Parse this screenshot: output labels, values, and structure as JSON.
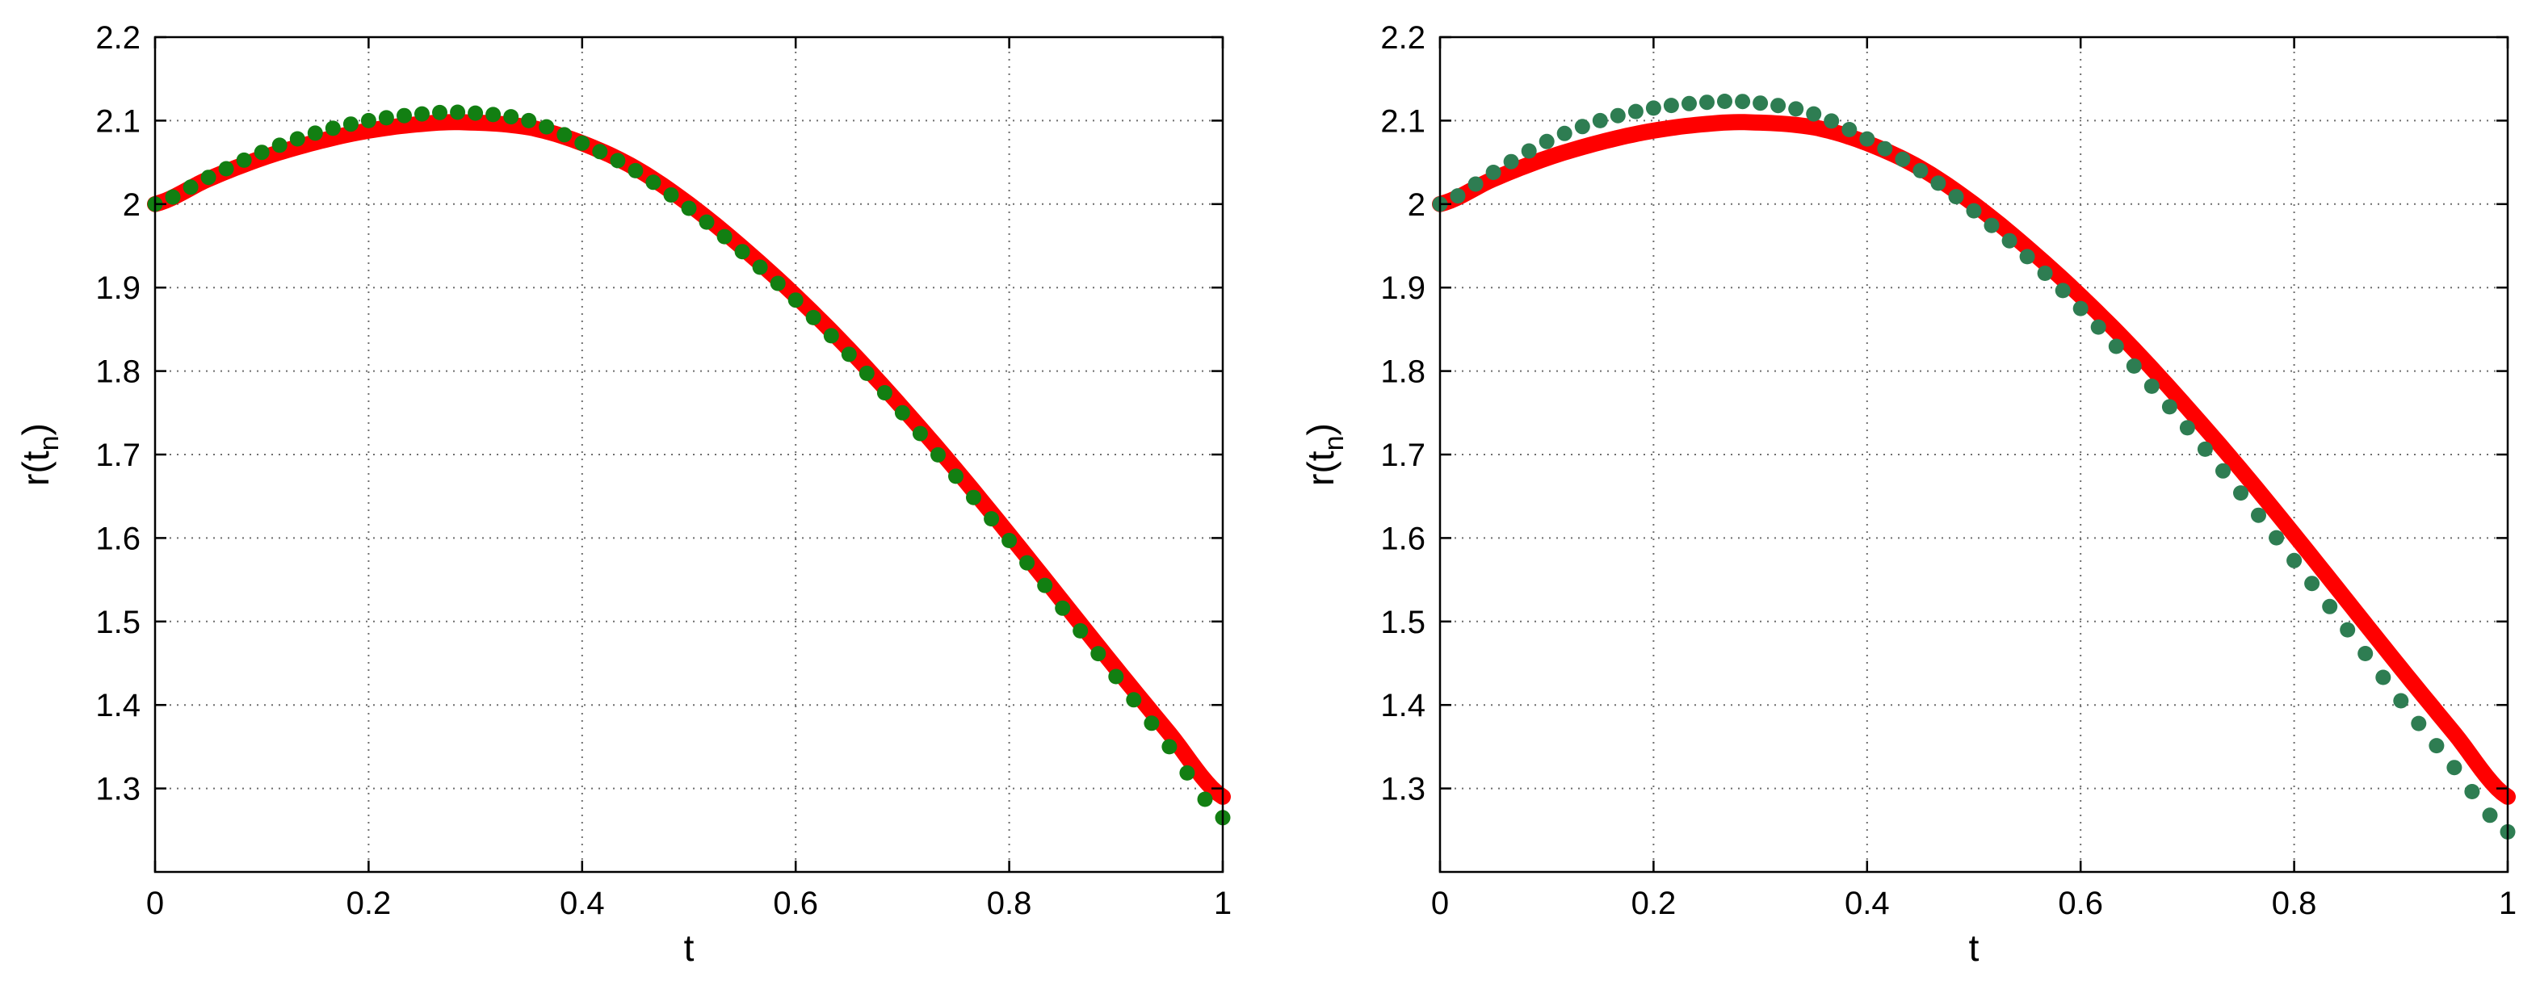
{
  "colors": {
    "exact": "#ff0000",
    "approx_left": "#127f12",
    "approx_right": "#2e7d52",
    "grid": "#6e6e6e",
    "axes": "#000000"
  },
  "chart_data": [
    {
      "type": "scatter",
      "xlabel": "t",
      "ylabel_main": "r(t",
      "ylabel_sub": "n",
      "ylabel_close": ")",
      "xlim": [
        0,
        1
      ],
      "ylim": [
        1.2,
        2.2
      ],
      "grid": true,
      "xticks": [
        0,
        0.2,
        0.4,
        0.6,
        0.8,
        1
      ],
      "xtick_labels": [
        "0",
        "0.2",
        "0.4",
        "0.6",
        "0.8",
        "1"
      ],
      "yticks": [
        1.3,
        1.4,
        1.5,
        1.6,
        1.7,
        1.8,
        1.9,
        2.0,
        2.1,
        2.2
      ],
      "ytick_labels": [
        "1.3",
        "1.4",
        "1.5",
        "1.6",
        "1.7",
        "1.8",
        "1.9",
        "2",
        "2.1",
        "2.2"
      ],
      "series": [
        {
          "kind": "curve",
          "color": "#ff0000",
          "points": [
            [
              0,
              2.0
            ],
            [
              0.05,
              2.03
            ],
            [
              0.1,
              2.055
            ],
            [
              0.15,
              2.074
            ],
            [
              0.2,
              2.088
            ],
            [
              0.25,
              2.096
            ],
            [
              0.29,
              2.098
            ],
            [
              0.35,
              2.092
            ],
            [
              0.4,
              2.073
            ],
            [
              0.45,
              2.043
            ],
            [
              0.5,
              2.0
            ],
            [
              0.55,
              1.948
            ],
            [
              0.6,
              1.89
            ],
            [
              0.65,
              1.826
            ],
            [
              0.7,
              1.756
            ],
            [
              0.75,
              1.682
            ],
            [
              0.8,
              1.604
            ],
            [
              0.85,
              1.524
            ],
            [
              0.9,
              1.444
            ],
            [
              0.95,
              1.366
            ],
            [
              1.0,
              1.29
            ]
          ]
        },
        {
          "kind": "markers",
          "color": "#127f12",
          "n_points": 60,
          "points": [
            [
              0,
              2.0
            ],
            [
              0.05,
              2.032
            ],
            [
              0.1,
              2.062
            ],
            [
              0.15,
              2.085
            ],
            [
              0.2,
              2.1
            ],
            [
              0.25,
              2.108
            ],
            [
              0.28,
              2.11
            ],
            [
              0.3,
              2.109
            ],
            [
              0.35,
              2.1
            ],
            [
              0.4,
              2.073
            ],
            [
              0.45,
              2.04
            ],
            [
              0.5,
              1.995
            ],
            [
              0.55,
              1.943
            ],
            [
              0.6,
              1.885
            ],
            [
              0.65,
              1.82
            ],
            [
              0.7,
              1.75
            ],
            [
              0.75,
              1.674
            ],
            [
              0.8,
              1.597
            ],
            [
              0.85,
              1.516
            ],
            [
              0.9,
              1.434
            ],
            [
              0.95,
              1.35
            ],
            [
              1.0,
              1.265
            ]
          ]
        }
      ]
    },
    {
      "type": "scatter",
      "xlabel": "t",
      "ylabel_main": "r(t",
      "ylabel_sub": "n",
      "ylabel_close": ")",
      "xlim": [
        0,
        1
      ],
      "ylim": [
        1.2,
        2.2
      ],
      "grid": true,
      "xticks": [
        0,
        0.2,
        0.4,
        0.6,
        0.8,
        1
      ],
      "xtick_labels": [
        "0",
        "0.2",
        "0.4",
        "0.6",
        "0.8",
        "1"
      ],
      "yticks": [
        1.3,
        1.4,
        1.5,
        1.6,
        1.7,
        1.8,
        1.9,
        2.0,
        2.1,
        2.2
      ],
      "ytick_labels": [
        "1.3",
        "1.4",
        "1.5",
        "1.6",
        "1.7",
        "1.8",
        "1.9",
        "2",
        "2.1",
        "2.2"
      ],
      "series": [
        {
          "kind": "curve",
          "color": "#ff0000",
          "points": [
            [
              0,
              2.0
            ],
            [
              0.05,
              2.03
            ],
            [
              0.1,
              2.055
            ],
            [
              0.15,
              2.074
            ],
            [
              0.2,
              2.088
            ],
            [
              0.25,
              2.096
            ],
            [
              0.29,
              2.098
            ],
            [
              0.35,
              2.092
            ],
            [
              0.4,
              2.073
            ],
            [
              0.45,
              2.043
            ],
            [
              0.5,
              2.0
            ],
            [
              0.55,
              1.948
            ],
            [
              0.6,
              1.89
            ],
            [
              0.65,
              1.826
            ],
            [
              0.7,
              1.756
            ],
            [
              0.75,
              1.682
            ],
            [
              0.8,
              1.604
            ],
            [
              0.85,
              1.524
            ],
            [
              0.9,
              1.444
            ],
            [
              0.95,
              1.366
            ],
            [
              1.0,
              1.29
            ]
          ]
        },
        {
          "kind": "markers",
          "color": "#2e7d52",
          "n_points": 60,
          "points": [
            [
              0,
              2.0
            ],
            [
              0.05,
              2.038
            ],
            [
              0.1,
              2.075
            ],
            [
              0.15,
              2.1
            ],
            [
              0.2,
              2.115
            ],
            [
              0.25,
              2.122
            ],
            [
              0.28,
              2.123
            ],
            [
              0.3,
              2.121
            ],
            [
              0.35,
              2.108
            ],
            [
              0.4,
              2.078
            ],
            [
              0.45,
              2.04
            ],
            [
              0.5,
              1.992
            ],
            [
              0.55,
              1.937
            ],
            [
              0.6,
              1.875
            ],
            [
              0.65,
              1.806
            ],
            [
              0.7,
              1.732
            ],
            [
              0.75,
              1.654
            ],
            [
              0.8,
              1.573
            ],
            [
              0.85,
              1.49
            ],
            [
              0.9,
              1.405
            ],
            [
              0.95,
              1.325
            ],
            [
              1.0,
              1.248
            ]
          ]
        }
      ]
    }
  ]
}
